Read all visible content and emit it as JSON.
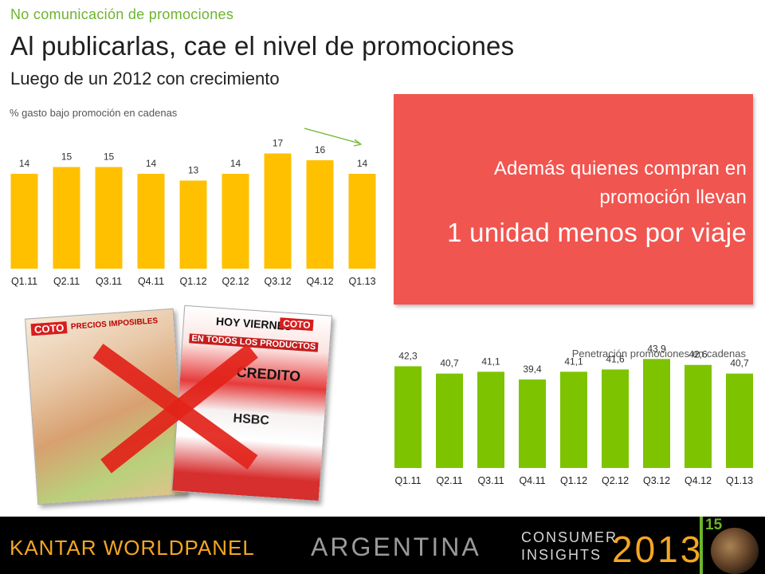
{
  "header": {
    "kicker": "No comunicación de promociones",
    "title": "Al publicarlas, cae el nivel de promociones",
    "subtitle": "Luego de un 2012 con crecimiento"
  },
  "colors": {
    "kicker": "#6cb52d",
    "chart1_bars": "#ffc000",
    "chart2_bars": "#7dc300",
    "callout_bg": "#f15550",
    "brand_orange": "#f5a623"
  },
  "callout": {
    "line1": "Además quienes compran en",
    "line2": "promoción llevan",
    "line3": "1 unidad menos por viaje"
  },
  "chart_data": [
    {
      "type": "bar",
      "title": "% gasto bajo promoción en cadenas",
      "categories": [
        "Q1.11",
        "Q2.11",
        "Q3.11",
        "Q4.11",
        "Q1.12",
        "Q2.12",
        "Q3.12",
        "Q4.12",
        "Q1.13"
      ],
      "values": [
        14,
        15,
        15,
        14,
        13,
        14,
        17,
        16,
        14
      ],
      "value_labels": [
        "14",
        "15",
        "15",
        "14",
        "13",
        "14",
        "17",
        "16",
        "14"
      ],
      "ylim": [
        0,
        18
      ],
      "grid": false,
      "annotation": "green-trend-arrow"
    },
    {
      "type": "bar",
      "title": "Penetración promociones en cadenas",
      "categories": [
        "Q1.11",
        "Q2.11",
        "Q3.11",
        "Q4.11",
        "Q1.12",
        "Q2.12",
        "Q3.12",
        "Q4.12",
        "Q1.13"
      ],
      "values": [
        42.3,
        40.7,
        41.1,
        39.4,
        41.1,
        41.6,
        43.9,
        42.6,
        40.7
      ],
      "value_labels": [
        "42,3",
        "40,7",
        "41,1",
        "39,4",
        "41,1",
        "41,6",
        "43,9",
        "42,6",
        "40,7"
      ],
      "ylim": [
        20,
        45
      ],
      "grid": false
    }
  ],
  "flyers": {
    "left_brand": "COTO",
    "left_headline": "PRECIOS IMPOSIBLES",
    "right_top": "HOY VIERNES",
    "right_brand": "COTO",
    "right_headline": "EN TODOS LOS PRODUCTOS",
    "right_credito": "CREDITO",
    "right_bank": "HSBC",
    "cross_icon": "red-x-icon"
  },
  "footer": {
    "brand": "KANTAR WORLDPANEL",
    "country": "ARGENTINA",
    "ci_line1": "CONSUMER",
    "ci_line2": "INSIGHTS",
    "year": "2013",
    "page_number": "15"
  }
}
